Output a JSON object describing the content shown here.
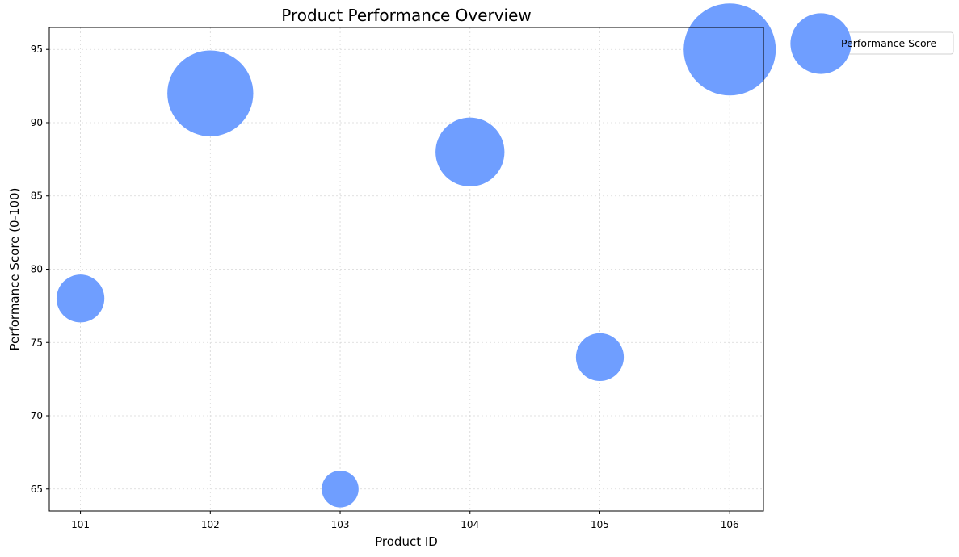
{
  "chart_data": {
    "type": "scatter",
    "title": "Product Performance Overview",
    "xlabel": "Product ID",
    "ylabel": "Performance Score (0-100)",
    "x": [
      101,
      102,
      103,
      104,
      105,
      106
    ],
    "y": [
      78,
      92,
      65,
      88,
      74,
      95
    ],
    "relative_bubble_size": [
      0.27,
      0.87,
      0.16,
      0.56,
      0.27,
      1.0
    ],
    "x_ticks": [
      "101",
      "102",
      "103",
      "104",
      "105",
      "106"
    ],
    "y_ticks": [
      "65",
      "70",
      "75",
      "80",
      "85",
      "90",
      "95"
    ],
    "xlim": [
      100.76,
      106.26
    ],
    "ylim": [
      63.5,
      96.5
    ],
    "grid": true,
    "legend": {
      "label": "Performance Score",
      "placement": "outside top-right"
    },
    "colors": {
      "bubble": "#6f9eff",
      "axis": "#000000",
      "grid": "#d6d6d6"
    }
  }
}
